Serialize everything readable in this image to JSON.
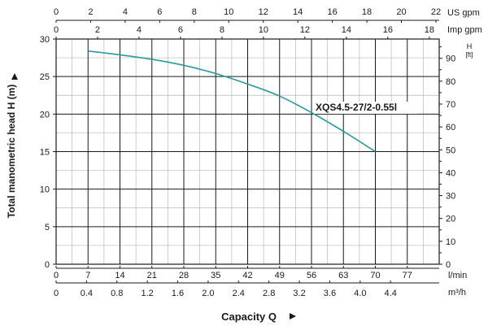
{
  "chart_data": {
    "type": "line",
    "series": [
      {
        "name": "XQS4.5-27/2-0.55l",
        "color": "#2a9a9e",
        "x_lmin": [
          7,
          14,
          21,
          28,
          35,
          42,
          49,
          56,
          63,
          70
        ],
        "y_h_m": [
          28.4,
          27.9,
          27.3,
          26.5,
          25.4,
          24.0,
          22.4,
          20.2,
          17.7,
          15.0
        ]
      }
    ],
    "ylabel": "Total manometric head H (m)",
    "xlabel": "Capacity Q",
    "left_axis": {
      "ticks": [
        "0",
        "5",
        "10",
        "15",
        "20",
        "25",
        "30"
      ],
      "ylim": [
        0,
        30
      ]
    },
    "right_axis": {
      "unit_top": "H",
      "unit_bottom": "[ft]",
      "ticks": [
        "0",
        "10",
        "20",
        "30",
        "40",
        "50",
        "60",
        "70",
        "80",
        "90"
      ]
    },
    "bottom_axis_lmin": {
      "unit": "l/min",
      "ticks": [
        "0",
        "7",
        "14",
        "21",
        "28",
        "35",
        "42",
        "49",
        "56",
        "63",
        "70",
        "77"
      ],
      "xlim": [
        0,
        84
      ]
    },
    "bottom_axis_m3h": {
      "unit": "m³/h",
      "ticks": [
        "0",
        "0.4",
        "0.8",
        "1.2",
        "1.6",
        "2.0",
        "2.4",
        "2.8",
        "3.2",
        "3.6",
        "4.0",
        "4.4"
      ]
    },
    "top_axis_usgpm": {
      "unit": "US gpm",
      "ticks": [
        "0",
        "2",
        "4",
        "6",
        "8",
        "10",
        "12",
        "14",
        "16",
        "18",
        "20",
        "22"
      ]
    },
    "top_axis_impgpm": {
      "unit": "Imp gpm",
      "ticks": [
        "0",
        "2",
        "4",
        "6",
        "8",
        "10",
        "12",
        "14",
        "16",
        "18"
      ]
    },
    "grid": true
  }
}
